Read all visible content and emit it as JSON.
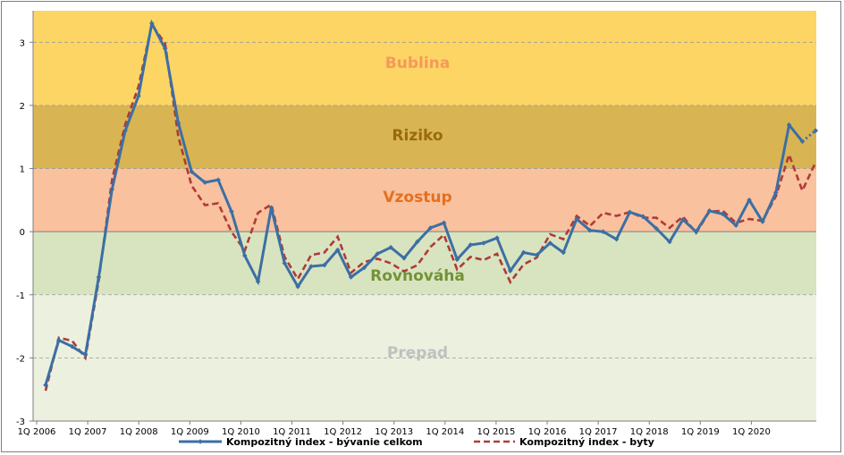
{
  "chart_data": {
    "type": "line",
    "x_ticks": [
      "1Q 2006",
      "1Q 2007",
      "1Q 2008",
      "1Q 2009",
      "1Q 2010",
      "1Q 2011",
      "1Q 2012",
      "1Q 2013",
      "1Q 2014",
      "1Q 2015",
      "1Q 2016",
      "1Q 2017",
      "1Q 2018",
      "1Q 2019",
      "1Q 2020"
    ],
    "y_ticks": [
      "-3",
      "-2",
      "-1",
      "0",
      "1",
      "2",
      "3"
    ],
    "ylim": [
      -3,
      3.5
    ],
    "zones": [
      {
        "label": "Bublina",
        "from": 2,
        "to": 3.5,
        "fill": "#fdd565",
        "text_color": "#f39a5a"
      },
      {
        "label": "Riziko",
        "from": 1,
        "to": 2,
        "fill": "#d8b552",
        "text_color": "#996a0c"
      },
      {
        "label": "Vzostup",
        "from": 0,
        "to": 1,
        "fill": "#f9c19e",
        "text_color": "#e4701f"
      },
      {
        "label": "Rovnováha",
        "from": -1,
        "to": 0,
        "fill": "#d8e4bf",
        "text_color": "#739238"
      },
      {
        "label": "Prepad",
        "from": -3,
        "to": -1,
        "fill": "#ebf1de",
        "text_color": "#c0c0c0"
      }
    ],
    "series": [
      {
        "name": "Kompozitný index - bývanie celkom",
        "color": "#3c6fa4",
        "style": "solid-markers",
        "values": [
          -2.43,
          -1.72,
          -1.82,
          -1.95,
          -0.72,
          0.67,
          1.6,
          2.15,
          3.3,
          2.9,
          1.72,
          0.95,
          0.78,
          0.82,
          0.32,
          -0.38,
          -0.79,
          0.38,
          -0.5,
          -0.87,
          -0.55,
          -0.53,
          -0.29,
          -0.72,
          -0.57,
          -0.35,
          -0.25,
          -0.42,
          -0.16,
          0.06,
          0.14,
          -0.44,
          -0.21,
          -0.18,
          -0.1,
          -0.62,
          -0.33,
          -0.37,
          -0.18,
          -0.33,
          0.2,
          0.02,
          0.0,
          -0.12,
          0.31,
          0.24,
          0.05,
          -0.16,
          0.19,
          0.0,
          0.33,
          0.28,
          0.1,
          0.5,
          0.16,
          0.62,
          1.69,
          1.43,
          1.6
        ]
      },
      {
        "name": "Kompozitný index - byty",
        "color": "#b03a3a",
        "style": "dashed",
        "values": [
          -2.52,
          -1.68,
          -1.73,
          -2.0,
          -0.78,
          0.82,
          1.7,
          2.3,
          3.28,
          2.98,
          1.5,
          0.73,
          0.42,
          0.45,
          0.0,
          -0.3,
          0.3,
          0.43,
          -0.4,
          -0.75,
          -0.37,
          -0.33,
          -0.08,
          -0.65,
          -0.48,
          -0.43,
          -0.5,
          -0.63,
          -0.53,
          -0.24,
          -0.05,
          -0.6,
          -0.4,
          -0.45,
          -0.35,
          -0.8,
          -0.52,
          -0.41,
          -0.04,
          -0.12,
          0.25,
          0.09,
          0.3,
          0.25,
          0.31,
          0.22,
          0.22,
          0.06,
          0.24,
          -0.02,
          0.32,
          0.33,
          0.14,
          0.2,
          0.17,
          0.56,
          1.22,
          0.65,
          1.1
        ]
      }
    ],
    "legend_position": "bottom"
  }
}
